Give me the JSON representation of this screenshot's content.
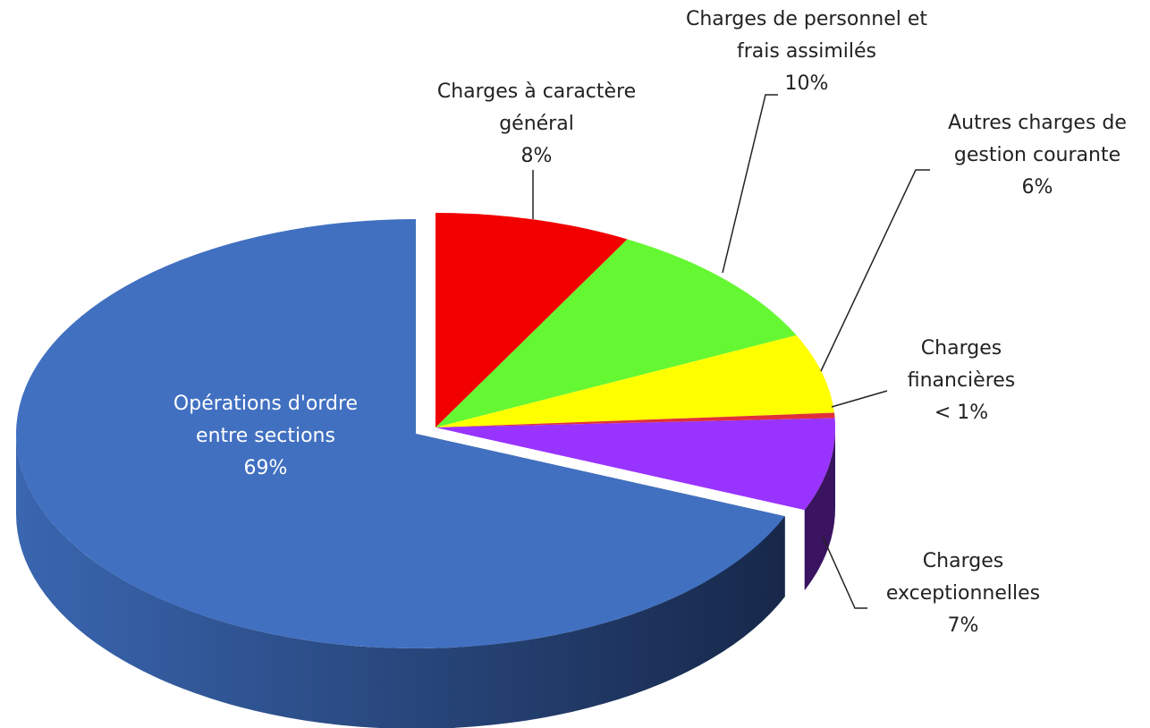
{
  "chart_data": {
    "type": "pie3d",
    "categories": [
      "Charges à caractère général",
      "Charges de personnel et frais assimilés",
      "Autres charges de gestion courante",
      "Charges financières",
      "Charges exceptionnelles",
      "Opérations d'ordre entre sections"
    ],
    "values": [
      8,
      10,
      6,
      0.4,
      7,
      69
    ],
    "value_labels": [
      "8%",
      "10%",
      "6%",
      "< 1%",
      "7%",
      "69%"
    ],
    "colors": [
      "#f20000",
      "#66f733",
      "#ffff00",
      "#e0303a",
      "#9933ff",
      "#4170c1"
    ]
  }
}
